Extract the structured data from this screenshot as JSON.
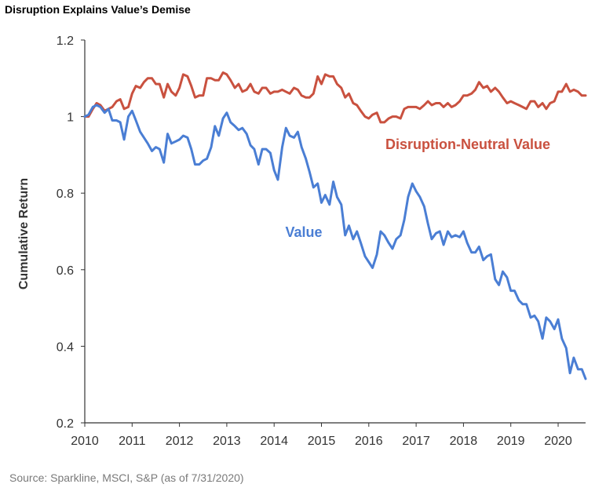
{
  "title": "Disruption Explains Value’s Demise",
  "source": "Source: Sparkline, MSCI, S&P (as of 7/31/2020)",
  "colors": {
    "value": "#4a7ed4",
    "neutral": "#c9513f",
    "axis": "#333333"
  },
  "chart_data": {
    "type": "line",
    "title": "Disruption Explains Value’s Demise",
    "xlabel": "",
    "ylabel": "Cumulative Return",
    "xlim": [
      2010,
      2020.58
    ],
    "ylim": [
      0.2,
      1.2
    ],
    "x_ticks": [
      "2010",
      "2011",
      "2012",
      "2013",
      "2014",
      "2015",
      "2016",
      "2017",
      "2018",
      "2019",
      "2020"
    ],
    "y_ticks": [
      "0.2",
      "0.4",
      "0.6",
      "0.8",
      "1",
      "1.2"
    ],
    "grid": false,
    "series": [
      {
        "name": "Disruption-Neutral Value",
        "color": "#c9513f",
        "points": [
          [
            2010.0,
            1.0
          ],
          [
            2010.08,
            1.0
          ],
          [
            2010.17,
            1.02
          ],
          [
            2010.25,
            1.035
          ],
          [
            2010.33,
            1.03
          ],
          [
            2010.42,
            1.015
          ],
          [
            2010.5,
            1.02
          ],
          [
            2010.58,
            1.025
          ],
          [
            2010.67,
            1.04
          ],
          [
            2010.75,
            1.045
          ],
          [
            2010.83,
            1.02
          ],
          [
            2010.92,
            1.025
          ],
          [
            2011.0,
            1.06
          ],
          [
            2011.08,
            1.08
          ],
          [
            2011.17,
            1.075
          ],
          [
            2011.25,
            1.09
          ],
          [
            2011.33,
            1.1
          ],
          [
            2011.42,
            1.1
          ],
          [
            2011.5,
            1.085
          ],
          [
            2011.58,
            1.085
          ],
          [
            2011.67,
            1.05
          ],
          [
            2011.75,
            1.085
          ],
          [
            2011.83,
            1.065
          ],
          [
            2011.92,
            1.055
          ],
          [
            2012.0,
            1.075
          ],
          [
            2012.08,
            1.11
          ],
          [
            2012.17,
            1.105
          ],
          [
            2012.25,
            1.08
          ],
          [
            2012.33,
            1.05
          ],
          [
            2012.42,
            1.055
          ],
          [
            2012.5,
            1.055
          ],
          [
            2012.58,
            1.1
          ],
          [
            2012.67,
            1.1
          ],
          [
            2012.75,
            1.095
          ],
          [
            2012.83,
            1.095
          ],
          [
            2012.92,
            1.115
          ],
          [
            2013.0,
            1.11
          ],
          [
            2013.08,
            1.095
          ],
          [
            2013.17,
            1.075
          ],
          [
            2013.25,
            1.085
          ],
          [
            2013.33,
            1.065
          ],
          [
            2013.42,
            1.07
          ],
          [
            2013.5,
            1.085
          ],
          [
            2013.58,
            1.065
          ],
          [
            2013.67,
            1.06
          ],
          [
            2013.75,
            1.075
          ],
          [
            2013.83,
            1.075
          ],
          [
            2013.92,
            1.06
          ],
          [
            2014.0,
            1.065
          ],
          [
            2014.08,
            1.065
          ],
          [
            2014.17,
            1.07
          ],
          [
            2014.25,
            1.065
          ],
          [
            2014.33,
            1.06
          ],
          [
            2014.42,
            1.075
          ],
          [
            2014.5,
            1.07
          ],
          [
            2014.58,
            1.055
          ],
          [
            2014.67,
            1.05
          ],
          [
            2014.75,
            1.05
          ],
          [
            2014.83,
            1.06
          ],
          [
            2014.92,
            1.105
          ],
          [
            2015.0,
            1.085
          ],
          [
            2015.08,
            1.11
          ],
          [
            2015.17,
            1.105
          ],
          [
            2015.25,
            1.105
          ],
          [
            2015.33,
            1.085
          ],
          [
            2015.42,
            1.075
          ],
          [
            2015.5,
            1.05
          ],
          [
            2015.58,
            1.06
          ],
          [
            2015.67,
            1.035
          ],
          [
            2015.75,
            1.03
          ],
          [
            2015.83,
            1.015
          ],
          [
            2015.92,
            1.0
          ],
          [
            2016.0,
            0.995
          ],
          [
            2016.08,
            1.005
          ],
          [
            2016.17,
            1.01
          ],
          [
            2016.25,
            0.985
          ],
          [
            2016.33,
            0.985
          ],
          [
            2016.42,
            0.995
          ],
          [
            2016.5,
            1.0
          ],
          [
            2016.58,
            1.0
          ],
          [
            2016.67,
            0.995
          ],
          [
            2016.75,
            1.02
          ],
          [
            2016.83,
            1.025
          ],
          [
            2016.92,
            1.025
          ],
          [
            2017.0,
            1.025
          ],
          [
            2017.08,
            1.02
          ],
          [
            2017.17,
            1.03
          ],
          [
            2017.25,
            1.04
          ],
          [
            2017.33,
            1.03
          ],
          [
            2017.42,
            1.035
          ],
          [
            2017.5,
            1.035
          ],
          [
            2017.58,
            1.025
          ],
          [
            2017.67,
            1.035
          ],
          [
            2017.75,
            1.025
          ],
          [
            2017.83,
            1.03
          ],
          [
            2017.92,
            1.04
          ],
          [
            2018.0,
            1.055
          ],
          [
            2018.08,
            1.055
          ],
          [
            2018.17,
            1.06
          ],
          [
            2018.25,
            1.07
          ],
          [
            2018.33,
            1.09
          ],
          [
            2018.42,
            1.075
          ],
          [
            2018.5,
            1.08
          ],
          [
            2018.58,
            1.065
          ],
          [
            2018.67,
            1.075
          ],
          [
            2018.75,
            1.065
          ],
          [
            2018.83,
            1.05
          ],
          [
            2018.92,
            1.035
          ],
          [
            2019.0,
            1.04
          ],
          [
            2019.08,
            1.035
          ],
          [
            2019.17,
            1.03
          ],
          [
            2019.25,
            1.025
          ],
          [
            2019.33,
            1.02
          ],
          [
            2019.42,
            1.04
          ],
          [
            2019.5,
            1.04
          ],
          [
            2019.58,
            1.025
          ],
          [
            2019.67,
            1.035
          ],
          [
            2019.75,
            1.02
          ],
          [
            2019.83,
            1.035
          ],
          [
            2019.92,
            1.04
          ],
          [
            2020.0,
            1.065
          ],
          [
            2020.08,
            1.065
          ],
          [
            2020.17,
            1.085
          ],
          [
            2020.25,
            1.065
          ],
          [
            2020.33,
            1.07
          ],
          [
            2020.42,
            1.065
          ],
          [
            2020.5,
            1.055
          ],
          [
            2020.58,
            1.055
          ]
        ]
      },
      {
        "name": "Value",
        "color": "#4a7ed4",
        "points": [
          [
            2010.0,
            1.0
          ],
          [
            2010.08,
            1.005
          ],
          [
            2010.17,
            1.025
          ],
          [
            2010.25,
            1.03
          ],
          [
            2010.33,
            1.025
          ],
          [
            2010.42,
            1.01
          ],
          [
            2010.5,
            1.02
          ],
          [
            2010.58,
            0.99
          ],
          [
            2010.67,
            0.99
          ],
          [
            2010.75,
            0.985
          ],
          [
            2010.83,
            0.94
          ],
          [
            2010.92,
            1.0
          ],
          [
            2011.0,
            1.015
          ],
          [
            2011.08,
            0.99
          ],
          [
            2011.17,
            0.96
          ],
          [
            2011.25,
            0.945
          ],
          [
            2011.33,
            0.93
          ],
          [
            2011.42,
            0.91
          ],
          [
            2011.5,
            0.92
          ],
          [
            2011.58,
            0.915
          ],
          [
            2011.67,
            0.88
          ],
          [
            2011.75,
            0.955
          ],
          [
            2011.83,
            0.93
          ],
          [
            2011.92,
            0.935
          ],
          [
            2012.0,
            0.94
          ],
          [
            2012.08,
            0.95
          ],
          [
            2012.17,
            0.945
          ],
          [
            2012.25,
            0.915
          ],
          [
            2012.33,
            0.875
          ],
          [
            2012.42,
            0.875
          ],
          [
            2012.5,
            0.885
          ],
          [
            2012.58,
            0.89
          ],
          [
            2012.67,
            0.92
          ],
          [
            2012.75,
            0.975
          ],
          [
            2012.83,
            0.95
          ],
          [
            2012.92,
            0.995
          ],
          [
            2013.0,
            1.01
          ],
          [
            2013.08,
            0.985
          ],
          [
            2013.17,
            0.975
          ],
          [
            2013.25,
            0.965
          ],
          [
            2013.33,
            0.97
          ],
          [
            2013.42,
            0.955
          ],
          [
            2013.5,
            0.925
          ],
          [
            2013.58,
            0.915
          ],
          [
            2013.67,
            0.875
          ],
          [
            2013.75,
            0.915
          ],
          [
            2013.83,
            0.915
          ],
          [
            2013.92,
            0.905
          ],
          [
            2014.0,
            0.86
          ],
          [
            2014.08,
            0.835
          ],
          [
            2014.17,
            0.92
          ],
          [
            2014.25,
            0.97
          ],
          [
            2014.33,
            0.95
          ],
          [
            2014.42,
            0.945
          ],
          [
            2014.5,
            0.96
          ],
          [
            2014.58,
            0.92
          ],
          [
            2014.67,
            0.89
          ],
          [
            2014.75,
            0.855
          ],
          [
            2014.83,
            0.815
          ],
          [
            2014.92,
            0.825
          ],
          [
            2015.0,
            0.775
          ],
          [
            2015.08,
            0.795
          ],
          [
            2015.17,
            0.77
          ],
          [
            2015.25,
            0.83
          ],
          [
            2015.33,
            0.79
          ],
          [
            2015.42,
            0.77
          ],
          [
            2015.5,
            0.69
          ],
          [
            2015.58,
            0.715
          ],
          [
            2015.67,
            0.68
          ],
          [
            2015.75,
            0.7
          ],
          [
            2015.83,
            0.67
          ],
          [
            2015.92,
            0.635
          ],
          [
            2016.0,
            0.62
          ],
          [
            2016.08,
            0.605
          ],
          [
            2016.17,
            0.64
          ],
          [
            2016.25,
            0.7
          ],
          [
            2016.33,
            0.69
          ],
          [
            2016.42,
            0.67
          ],
          [
            2016.5,
            0.655
          ],
          [
            2016.58,
            0.68
          ],
          [
            2016.67,
            0.69
          ],
          [
            2016.75,
            0.73
          ],
          [
            2016.83,
            0.79
          ],
          [
            2016.92,
            0.825
          ],
          [
            2017.0,
            0.805
          ],
          [
            2017.08,
            0.79
          ],
          [
            2017.17,
            0.765
          ],
          [
            2017.25,
            0.72
          ],
          [
            2017.33,
            0.68
          ],
          [
            2017.42,
            0.695
          ],
          [
            2017.5,
            0.7
          ],
          [
            2017.58,
            0.665
          ],
          [
            2017.67,
            0.7
          ],
          [
            2017.75,
            0.685
          ],
          [
            2017.83,
            0.69
          ],
          [
            2017.92,
            0.685
          ],
          [
            2018.0,
            0.7
          ],
          [
            2018.08,
            0.67
          ],
          [
            2018.17,
            0.645
          ],
          [
            2018.25,
            0.645
          ],
          [
            2018.33,
            0.66
          ],
          [
            2018.42,
            0.625
          ],
          [
            2018.5,
            0.635
          ],
          [
            2018.58,
            0.64
          ],
          [
            2018.67,
            0.575
          ],
          [
            2018.75,
            0.56
          ],
          [
            2018.83,
            0.595
          ],
          [
            2018.92,
            0.58
          ],
          [
            2019.0,
            0.545
          ],
          [
            2019.08,
            0.545
          ],
          [
            2019.17,
            0.52
          ],
          [
            2019.25,
            0.51
          ],
          [
            2019.33,
            0.51
          ],
          [
            2019.42,
            0.475
          ],
          [
            2019.5,
            0.48
          ],
          [
            2019.58,
            0.465
          ],
          [
            2019.67,
            0.42
          ],
          [
            2019.75,
            0.475
          ],
          [
            2019.83,
            0.465
          ],
          [
            2019.92,
            0.445
          ],
          [
            2020.0,
            0.47
          ],
          [
            2020.08,
            0.42
          ],
          [
            2020.17,
            0.395
          ],
          [
            2020.25,
            0.33
          ],
          [
            2020.33,
            0.37
          ],
          [
            2020.42,
            0.34
          ],
          [
            2020.5,
            0.34
          ],
          [
            2020.58,
            0.315
          ]
        ]
      }
    ],
    "annotations": [
      {
        "text": "Disruption-Neutral Value",
        "series": "Disruption-Neutral Value"
      },
      {
        "text": "Value",
        "series": "Value"
      }
    ]
  }
}
